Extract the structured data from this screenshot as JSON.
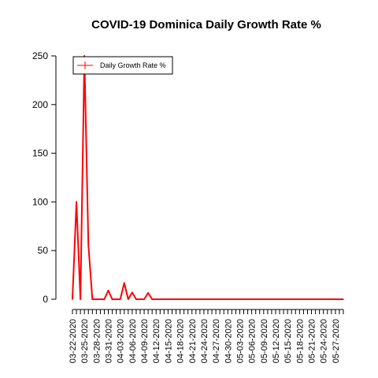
{
  "chart_data": {
    "type": "line",
    "title": "COVID-19 Dominica Daily Growth Rate %",
    "xlabel": "",
    "ylabel": "",
    "x_start": "03-22-2020",
    "x_end": "05-29-2020",
    "x_tick_labels": [
      "03-22-2020",
      "03-25-2020",
      "03-28-2020",
      "03-31-2020",
      "04-03-2020",
      "04-06-2020",
      "04-09-2020",
      "04-12-2020",
      "04-15-2020",
      "04-18-2020",
      "04-21-2020",
      "04-24-2020",
      "04-27-2020",
      "04-30-2020",
      "05-03-2020",
      "05-06-2020",
      "05-09-2020",
      "05-12-2020",
      "05-15-2020",
      "05-18-2020",
      "05-21-2020",
      "05-24-2020",
      "05-27-2020"
    ],
    "ylim": [
      0,
      250
    ],
    "yticks": [
      0,
      50,
      100,
      150,
      200,
      250
    ],
    "grid": false,
    "legend_position": "top-left",
    "series": [
      {
        "name": "Daily Growth Rate %",
        "color": "#ff0000",
        "points": [
          {
            "x": "03-22-2020",
            "y": 0
          },
          {
            "x": "03-23-2020",
            "y": 100
          },
          {
            "x": "03-24-2020",
            "y": 0
          },
          {
            "x": "03-25-2020",
            "y": 250
          },
          {
            "x": "03-26-2020",
            "y": 56
          },
          {
            "x": "03-27-2020",
            "y": 0
          },
          {
            "x": "03-28-2020",
            "y": 0
          },
          {
            "x": "03-29-2020",
            "y": 0
          },
          {
            "x": "03-30-2020",
            "y": 0
          },
          {
            "x": "03-31-2020",
            "y": 9
          },
          {
            "x": "04-01-2020",
            "y": 0
          },
          {
            "x": "04-02-2020",
            "y": 0
          },
          {
            "x": "04-03-2020",
            "y": 0
          },
          {
            "x": "04-04-2020",
            "y": 16.7
          },
          {
            "x": "04-05-2020",
            "y": 0
          },
          {
            "x": "04-06-2020",
            "y": 7
          },
          {
            "x": "04-07-2020",
            "y": 0
          },
          {
            "x": "04-08-2020",
            "y": 0
          },
          {
            "x": "04-09-2020",
            "y": 0
          },
          {
            "x": "04-10-2020",
            "y": 6.5
          },
          {
            "x": "04-11-2020",
            "y": 0
          },
          {
            "x": "05-29-2020",
            "y": 0
          }
        ]
      }
    ]
  }
}
